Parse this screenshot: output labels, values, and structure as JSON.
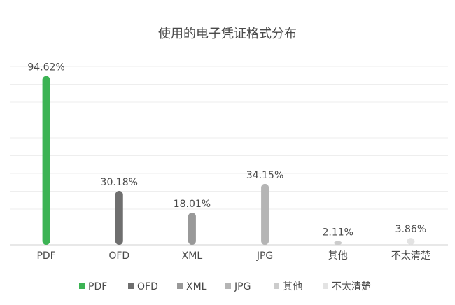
{
  "chart_data": {
    "type": "bar",
    "title": "使用的电子凭证格式分布",
    "categories": [
      "PDF",
      "OFD",
      "XML",
      "JPG",
      "其他",
      "不太清楚"
    ],
    "values": [
      94.62,
      30.18,
      18.01,
      34.15,
      2.11,
      3.86
    ],
    "value_labels": [
      "94.62%",
      "30.18%",
      "18.01%",
      "34.15%",
      "2.11%",
      "3.86%"
    ],
    "colors": [
      "#3cb354",
      "#6f6f6f",
      "#999999",
      "#b5b5b5",
      "#cccccc",
      "#e3e3e3"
    ],
    "ylim": [
      0,
      100
    ],
    "grid": true,
    "legend_position": "bottom",
    "legend": [
      "PDF",
      "OFD",
      "XML",
      "JPG",
      "其他",
      "不太清楚"
    ]
  }
}
